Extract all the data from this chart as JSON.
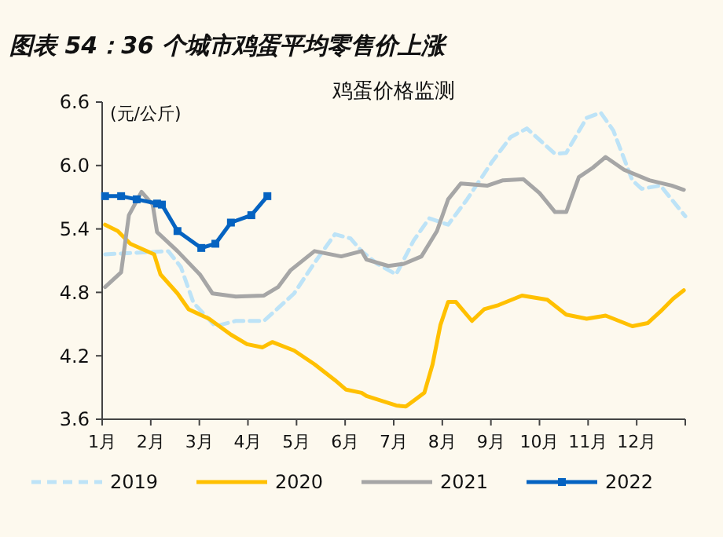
{
  "chart_data": {
    "type": "line",
    "title": "图表 54：36 个城市鸡蛋平均零售价上涨",
    "subtitle": "鸡蛋价格监测",
    "ylabel": "(元/公斤)",
    "xlim": [
      1,
      13
    ],
    "xticks": [
      {
        "value": 1,
        "label": "1月"
      },
      {
        "value": 2,
        "label": "2月"
      },
      {
        "value": 3,
        "label": "3月"
      },
      {
        "value": 4,
        "label": "4月"
      },
      {
        "value": 5,
        "label": "5月"
      },
      {
        "value": 6,
        "label": "6月"
      },
      {
        "value": 7,
        "label": "7月"
      },
      {
        "value": 8,
        "label": "8月"
      },
      {
        "value": 9,
        "label": "9月"
      },
      {
        "value": 10,
        "label": "10月"
      },
      {
        "value": 11,
        "label": "11月"
      },
      {
        "value": 12,
        "label": "12月"
      },
      {
        "value": 13,
        "label": null
      }
    ],
    "ylim": [
      3.6,
      6.6
    ],
    "yticks": [
      {
        "value": 3.6,
        "label": "3.6"
      },
      {
        "value": 4.2,
        "label": "4.2"
      },
      {
        "value": 4.8,
        "label": "4.8"
      },
      {
        "value": 5.4,
        "label": "5.4"
      },
      {
        "value": 6.0,
        "label": "6.0"
      },
      {
        "value": 6.6,
        "label": "6.6"
      }
    ],
    "grid": false,
    "legend": "bottom",
    "series": [
      {
        "name": "2019",
        "color": "#bde3f7",
        "line_style": "dashed",
        "marker": "none",
        "x": [
          1.06,
          2.36,
          2.62,
          2.88,
          3.33,
          3.75,
          4.33,
          4.95,
          5.37,
          5.79,
          6.11,
          6.34,
          6.66,
          7.05,
          7.41,
          7.73,
          8.12,
          8.51,
          9.03,
          9.41,
          9.74,
          10.32,
          10.55,
          10.97,
          11.26,
          11.52,
          11.91,
          12.1,
          12.49,
          13.0
        ],
        "values": [
          5.16,
          5.19,
          5.04,
          4.7,
          4.48,
          4.53,
          4.53,
          4.79,
          5.08,
          5.35,
          5.31,
          5.19,
          5.07,
          4.97,
          5.29,
          5.5,
          5.44,
          5.68,
          6.04,
          6.27,
          6.35,
          6.11,
          6.12,
          6.45,
          6.5,
          6.33,
          5.86,
          5.78,
          5.81,
          5.52
        ]
      },
      {
        "name": "2020",
        "color": "#ffc000",
        "line_style": "solid",
        "marker": "none",
        "x": [
          1.06,
          1.32,
          1.58,
          2.07,
          2.2,
          2.55,
          2.78,
          3.2,
          3.65,
          3.98,
          4.3,
          4.5,
          4.95,
          5.37,
          5.79,
          6.02,
          6.34,
          6.44,
          7.05,
          7.25,
          7.63,
          7.8,
          7.96,
          8.12,
          8.28,
          8.61,
          8.86,
          9.16,
          9.64,
          10.16,
          10.55,
          10.97,
          11.36,
          11.91,
          12.23,
          12.49,
          12.75,
          12.97
        ],
        "values": [
          5.44,
          5.38,
          5.26,
          5.16,
          4.97,
          4.79,
          4.64,
          4.55,
          4.4,
          4.31,
          4.28,
          4.33,
          4.25,
          4.12,
          3.97,
          3.88,
          3.85,
          3.82,
          3.73,
          3.72,
          3.85,
          4.12,
          4.49,
          4.71,
          4.71,
          4.53,
          4.64,
          4.68,
          4.77,
          4.73,
          4.59,
          4.55,
          4.58,
          4.48,
          4.51,
          4.62,
          4.74,
          4.82
        ]
      },
      {
        "name": "2021",
        "color": "#a6a6a6",
        "line_style": "solid",
        "marker": "none",
        "x": [
          1.06,
          1.39,
          1.55,
          1.81,
          2.04,
          2.13,
          2.55,
          3.01,
          3.27,
          3.75,
          4.33,
          4.62,
          4.88,
          5.37,
          5.92,
          6.34,
          6.44,
          6.89,
          7.21,
          7.57,
          7.89,
          8.12,
          8.38,
          8.93,
          9.25,
          9.67,
          10.0,
          10.32,
          10.55,
          10.81,
          11.1,
          11.36,
          11.74,
          12.26,
          12.72,
          12.97
        ],
        "values": [
          4.85,
          4.99,
          5.53,
          5.75,
          5.63,
          5.37,
          5.19,
          4.97,
          4.79,
          4.76,
          4.77,
          4.85,
          5.01,
          5.19,
          5.14,
          5.19,
          5.11,
          5.05,
          5.07,
          5.14,
          5.38,
          5.68,
          5.83,
          5.81,
          5.86,
          5.87,
          5.74,
          5.56,
          5.56,
          5.89,
          5.98,
          6.08,
          5.96,
          5.86,
          5.81,
          5.77
        ]
      },
      {
        "name": "2022",
        "color": "#0563c1",
        "line_style": "solid",
        "marker": "square",
        "x": [
          1.06,
          1.39,
          1.71,
          2.13,
          2.23,
          2.55,
          3.04,
          3.33,
          3.65,
          4.07,
          4.4
        ],
        "values": [
          5.71,
          5.71,
          5.68,
          5.64,
          5.63,
          5.38,
          5.22,
          5.26,
          5.46,
          5.53,
          5.71
        ]
      }
    ]
  }
}
